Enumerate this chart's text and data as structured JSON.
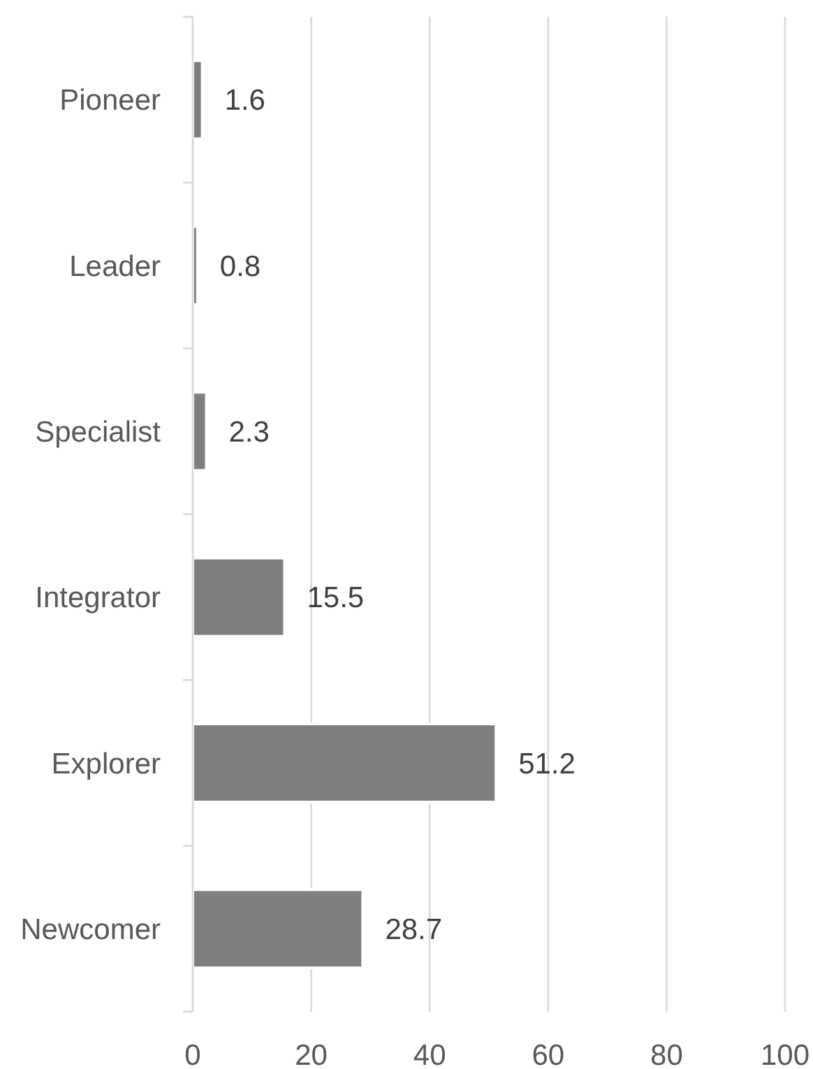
{
  "chart_data": {
    "type": "bar",
    "orientation": "horizontal",
    "categories": [
      "Pioneer",
      "Leader",
      "Specialist",
      "Integrator",
      "Explorer",
      "Newcomer"
    ],
    "values": [
      1.6,
      0.8,
      2.3,
      15.5,
      51.2,
      28.7
    ],
    "color": "#7f7f7f",
    "xlim": [
      0,
      100
    ],
    "xticks": [
      0,
      20,
      40,
      60,
      80,
      100
    ],
    "grid": "x",
    "data_labels": true
  }
}
